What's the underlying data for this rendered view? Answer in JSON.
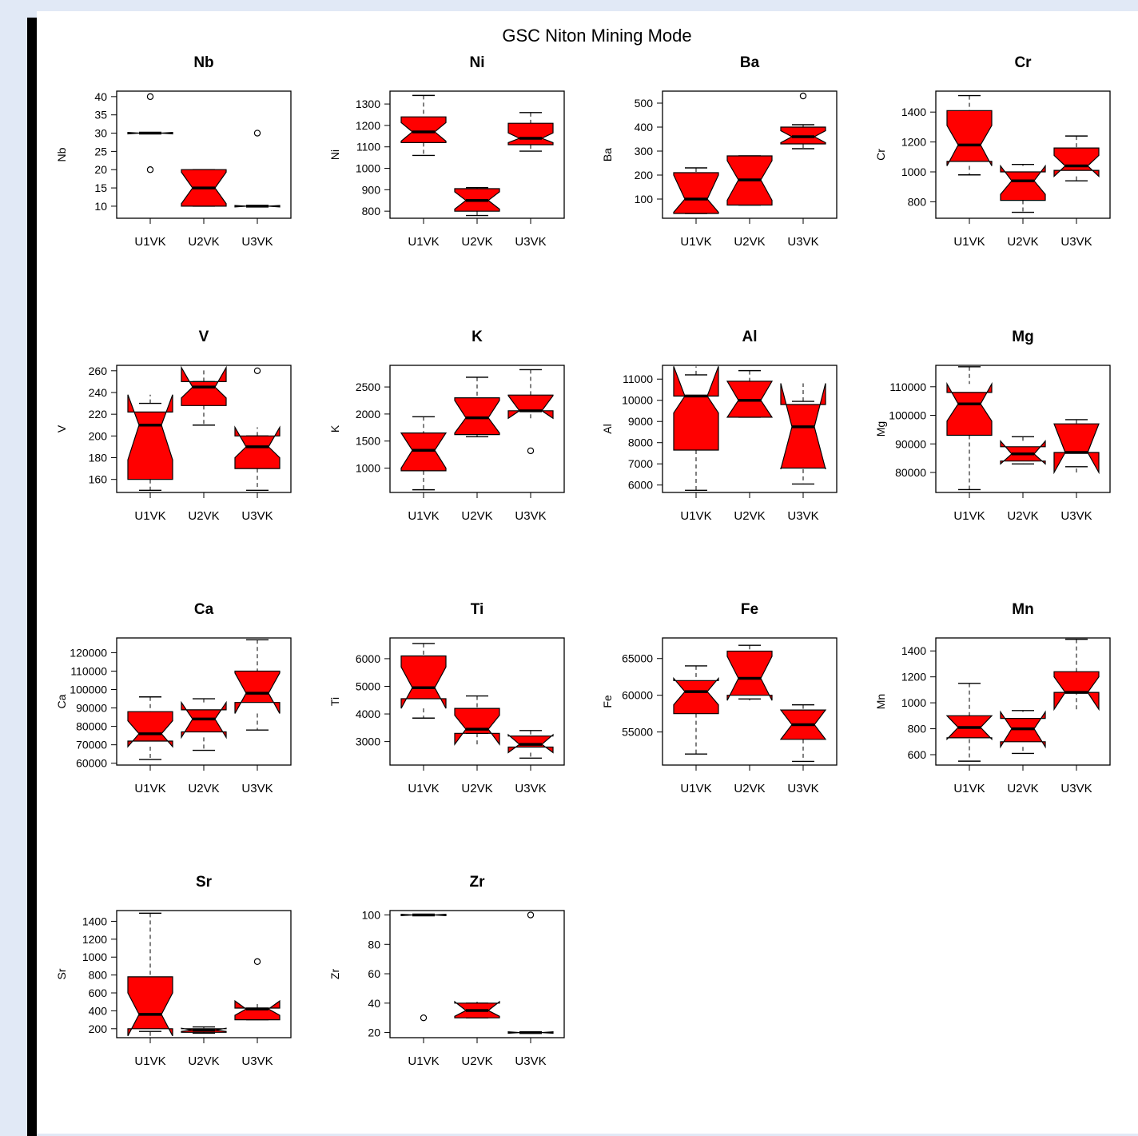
{
  "page": {
    "suptitle": "GSC Niton Mining Mode",
    "colors": {
      "page_bg": "#e1e9f6",
      "box_fill": "#ff0000",
      "frame": "#000000"
    }
  },
  "chart_data": [
    {
      "type": "box",
      "title": "Nb",
      "ylabel": "Nb",
      "categories": [
        "U1VK",
        "U2VK",
        "U3VK"
      ],
      "yticks": [
        10,
        15,
        20,
        25,
        30,
        35,
        40
      ],
      "ylim": [
        6.7,
        41.5
      ],
      "boxes": [
        {
          "q1": 30,
          "median": 30,
          "q3": 30,
          "notch_lo": 29.8,
          "notch_hi": 30.2,
          "whisker_lo": 30,
          "whisker_hi": 30,
          "outliers": [
            40,
            20
          ]
        },
        {
          "q1": 10,
          "median": 15,
          "q3": 20,
          "notch_lo": 10.7,
          "notch_hi": 19.3,
          "whisker_lo": 10,
          "whisker_hi": 20,
          "outliers": []
        },
        {
          "q1": 10,
          "median": 10,
          "q3": 10,
          "notch_lo": 9.8,
          "notch_hi": 10.2,
          "whisker_lo": 10,
          "whisker_hi": 10,
          "outliers": [
            30
          ]
        }
      ]
    },
    {
      "type": "box",
      "title": "Ni",
      "ylabel": "Ni",
      "categories": [
        "U1VK",
        "U2VK",
        "U3VK"
      ],
      "yticks": [
        800,
        900,
        1000,
        1100,
        1200,
        1300
      ],
      "ylim": [
        767,
        1360
      ],
      "boxes": [
        {
          "q1": 1120,
          "median": 1170,
          "q3": 1240,
          "notch_lo": 1127,
          "notch_hi": 1213,
          "whisker_lo": 1060,
          "whisker_hi": 1340,
          "outliers": []
        },
        {
          "q1": 800,
          "median": 850,
          "q3": 905,
          "notch_lo": 810,
          "notch_hi": 890,
          "whisker_lo": 780,
          "whisker_hi": 910,
          "outliers": []
        },
        {
          "q1": 1110,
          "median": 1140,
          "q3": 1210,
          "notch_lo": 1120,
          "notch_hi": 1165,
          "whisker_lo": 1080,
          "whisker_hi": 1260,
          "outliers": []
        }
      ]
    },
    {
      "type": "box",
      "title": "Ba",
      "ylabel": "Ba",
      "categories": [
        "U1VK",
        "U2VK",
        "U3VK"
      ],
      "yticks": [
        100,
        200,
        300,
        400,
        500
      ],
      "ylim": [
        20,
        550
      ],
      "boxes": [
        {
          "q1": 40,
          "median": 100,
          "q3": 210,
          "notch_lo": 45,
          "notch_hi": 200,
          "whisker_lo": 40,
          "whisker_hi": 230,
          "outliers": []
        },
        {
          "q1": 75,
          "median": 180,
          "q3": 280,
          "notch_lo": 95,
          "notch_hi": 260,
          "whisker_lo": 75,
          "whisker_hi": 280,
          "outliers": []
        },
        {
          "q1": 330,
          "median": 360,
          "q3": 400,
          "notch_lo": 335,
          "notch_hi": 385,
          "whisker_lo": 310,
          "whisker_hi": 410,
          "outliers": [
            530
          ]
        }
      ]
    },
    {
      "type": "box",
      "title": "Cr",
      "ylabel": "Cr",
      "categories": [
        "U1VK",
        "U2VK",
        "U3VK"
      ],
      "yticks": [
        800,
        1000,
        1200,
        1400
      ],
      "ylim": [
        690,
        1540
      ],
      "boxes": [
        {
          "q1": 1070,
          "median": 1180,
          "q3": 1410,
          "notch_lo": 1040,
          "notch_hi": 1310,
          "whisker_lo": 980,
          "whisker_hi": 1510,
          "outliers": []
        },
        {
          "q1": 810,
          "median": 940,
          "q3": 1000,
          "notch_lo": 850,
          "notch_hi": 1040,
          "whisker_lo": 730,
          "whisker_hi": 1050,
          "outliers": []
        },
        {
          "q1": 1010,
          "median": 1040,
          "q3": 1160,
          "notch_lo": 970,
          "notch_hi": 1110,
          "whisker_lo": 940,
          "whisker_hi": 1240,
          "outliers": []
        }
      ]
    },
    {
      "type": "box",
      "title": "V",
      "ylabel": "V",
      "categories": [
        "U1VK",
        "U2VK",
        "U3VK"
      ],
      "yticks": [
        160,
        180,
        200,
        220,
        240,
        260
      ],
      "ylim": [
        148,
        265
      ],
      "boxes": [
        {
          "q1": 160,
          "median": 210,
          "q3": 222,
          "notch_lo": 178,
          "notch_hi": 238,
          "whisker_lo": 150,
          "whisker_hi": 230,
          "outliers": []
        },
        {
          "q1": 228,
          "median": 245,
          "q3": 250,
          "notch_lo": 235,
          "notch_hi": 263,
          "whisker_lo": 210,
          "whisker_hi": 250,
          "outliers": []
        },
        {
          "q1": 170,
          "median": 190,
          "q3": 200,
          "notch_lo": 180,
          "notch_hi": 208,
          "whisker_lo": 150,
          "whisker_hi": 200,
          "outliers": [
            260
          ]
        }
      ]
    },
    {
      "type": "box",
      "title": "K",
      "ylabel": "K",
      "categories": [
        "U1VK",
        "U2VK",
        "U3VK"
      ],
      "yticks": [
        1000,
        1500,
        2000,
        2500
      ],
      "ylim": [
        550,
        2900
      ],
      "boxes": [
        {
          "q1": 950,
          "median": 1330,
          "q3": 1650,
          "notch_lo": 1000,
          "notch_hi": 1650,
          "whisker_lo": 600,
          "whisker_hi": 1950,
          "outliers": []
        },
        {
          "q1": 1620,
          "median": 1930,
          "q3": 2300,
          "notch_lo": 1650,
          "notch_hi": 2250,
          "whisker_lo": 1580,
          "whisker_hi": 2680,
          "outliers": []
        },
        {
          "q1": 2060,
          "median": 2060,
          "q3": 2350,
          "notch_lo": 1920,
          "notch_hi": 2340,
          "whisker_lo": 2060,
          "whisker_hi": 2820,
          "outliers": [
            1320
          ]
        }
      ]
    },
    {
      "type": "box",
      "title": "Al",
      "ylabel": "Al",
      "categories": [
        "U1VK",
        "U2VK",
        "U3VK"
      ],
      "yticks": [
        6000,
        7000,
        8000,
        9000,
        10000,
        11000
      ],
      "ylim": [
        5650,
        11650
      ],
      "boxes": [
        {
          "q1": 7650,
          "median": 10200,
          "q3": 10200,
          "notch_lo": 9400,
          "notch_hi": 11600,
          "whisker_lo": 5750,
          "whisker_hi": 11200,
          "outliers": []
        },
        {
          "q1": 9200,
          "median": 10000,
          "q3": 10900,
          "notch_lo": 9200,
          "notch_hi": 10900,
          "whisker_lo": 9200,
          "whisker_hi": 11400,
          "outliers": []
        },
        {
          "q1": 6800,
          "median": 8750,
          "q3": 9800,
          "notch_lo": 6750,
          "notch_hi": 10800,
          "whisker_lo": 6050,
          "whisker_hi": 9950,
          "outliers": []
        }
      ]
    },
    {
      "type": "box",
      "title": "Mg",
      "ylabel": "Mg",
      "categories": [
        "U1VK",
        "U2VK",
        "U3VK"
      ],
      "yticks": [
        80000,
        90000,
        100000,
        110000
      ],
      "ylim": [
        73000,
        117500
      ],
      "boxes": [
        {
          "q1": 93000,
          "median": 104000,
          "q3": 108000,
          "notch_lo": 98000,
          "notch_hi": 111000,
          "whisker_lo": 74000,
          "whisker_hi": 117000,
          "outliers": []
        },
        {
          "q1": 84000,
          "median": 86500,
          "q3": 89000,
          "notch_lo": 83000,
          "notch_hi": 91000,
          "whisker_lo": 83000,
          "whisker_hi": 92500,
          "outliers": []
        },
        {
          "q1": 87000,
          "median": 87000,
          "q3": 97000,
          "notch_lo": 80000,
          "notch_hi": 97000,
          "whisker_lo": 82000,
          "whisker_hi": 98500,
          "outliers": []
        }
      ]
    },
    {
      "type": "box",
      "title": "Ca",
      "ylabel": "Ca",
      "categories": [
        "U1VK",
        "U2VK",
        "U3VK"
      ],
      "yticks": [
        60000,
        70000,
        80000,
        90000,
        100000,
        110000,
        120000
      ],
      "ylim": [
        59000,
        128000
      ],
      "boxes": [
        {
          "q1": 72000,
          "median": 76000,
          "q3": 88000,
          "notch_lo": 69000,
          "notch_hi": 83000,
          "whisker_lo": 62000,
          "whisker_hi": 96000,
          "outliers": []
        },
        {
          "q1": 77000,
          "median": 84000,
          "q3": 89000,
          "notch_lo": 74000,
          "notch_hi": 93000,
          "whisker_lo": 67000,
          "whisker_hi": 95000,
          "outliers": []
        },
        {
          "q1": 93000,
          "median": 98000,
          "q3": 110000,
          "notch_lo": 87000,
          "notch_hi": 109000,
          "whisker_lo": 78000,
          "whisker_hi": 127000,
          "outliers": []
        }
      ]
    },
    {
      "type": "box",
      "title": "Ti",
      "ylabel": "Ti",
      "categories": [
        "U1VK",
        "U2VK",
        "U3VK"
      ],
      "yticks": [
        3000,
        4000,
        5000,
        6000
      ],
      "ylim": [
        2150,
        6750
      ],
      "boxes": [
        {
          "q1": 4550,
          "median": 4950,
          "q3": 6100,
          "notch_lo": 4200,
          "notch_hi": 5700,
          "whisker_lo": 3850,
          "whisker_hi": 6550,
          "outliers": []
        },
        {
          "q1": 3300,
          "median": 3450,
          "q3": 4200,
          "notch_lo": 2900,
          "notch_hi": 3950,
          "whisker_lo": 3300,
          "whisker_hi": 4650,
          "outliers": []
        },
        {
          "q1": 2800,
          "median": 2900,
          "q3": 3200,
          "notch_lo": 2600,
          "notch_hi": 3250,
          "whisker_lo": 2400,
          "whisker_hi": 3400,
          "outliers": []
        }
      ]
    },
    {
      "type": "box",
      "title": "Fe",
      "ylabel": "Fe",
      "categories": [
        "U1VK",
        "U2VK",
        "U3VK"
      ],
      "yticks": [
        55000,
        60000,
        65000
      ],
      "ylim": [
        50500,
        67800
      ],
      "boxes": [
        {
          "q1": 57500,
          "median": 60500,
          "q3": 62000,
          "notch_lo": 58700,
          "notch_hi": 62300,
          "whisker_lo": 52000,
          "whisker_hi": 64000,
          "outliers": []
        },
        {
          "q1": 60000,
          "median": 62300,
          "q3": 66000,
          "notch_lo": 59300,
          "notch_hi": 65300,
          "whisker_lo": 59500,
          "whisker_hi": 66800,
          "outliers": []
        },
        {
          "q1": 54000,
          "median": 56000,
          "q3": 58000,
          "notch_lo": 54000,
          "notch_hi": 58000,
          "whisker_lo": 51000,
          "whisker_hi": 58700,
          "outliers": []
        }
      ]
    },
    {
      "type": "box",
      "title": "Mn",
      "ylabel": "Mn",
      "categories": [
        "U1VK",
        "U2VK",
        "U3VK"
      ],
      "yticks": [
        600,
        800,
        1000,
        1200,
        1400
      ],
      "ylim": [
        520,
        1500
      ],
      "boxes": [
        {
          "q1": 730,
          "median": 810,
          "q3": 900,
          "notch_lo": 720,
          "notch_hi": 900,
          "whisker_lo": 550,
          "whisker_hi": 1150,
          "outliers": []
        },
        {
          "q1": 700,
          "median": 800,
          "q3": 880,
          "notch_lo": 660,
          "notch_hi": 930,
          "whisker_lo": 610,
          "whisker_hi": 940,
          "outliers": []
        },
        {
          "q1": 1080,
          "median": 1080,
          "q3": 1240,
          "notch_lo": 950,
          "notch_hi": 1200,
          "whisker_lo": 1080,
          "whisker_hi": 1490,
          "outliers": []
        }
      ]
    },
    {
      "type": "box",
      "title": "Sr",
      "ylabel": "Sr",
      "categories": [
        "U1VK",
        "U2VK",
        "U3VK"
      ],
      "yticks": [
        200,
        400,
        600,
        800,
        1000,
        1200,
        1400
      ],
      "ylim": [
        100,
        1520
      ],
      "boxes": [
        {
          "q1": 200,
          "median": 360,
          "q3": 780,
          "notch_lo": 120,
          "notch_hi": 600,
          "whisker_lo": 170,
          "whisker_hi": 1490,
          "outliers": []
        },
        {
          "q1": 160,
          "median": 185,
          "q3": 200,
          "notch_lo": 170,
          "notch_hi": 205,
          "whisker_lo": 150,
          "whisker_hi": 220,
          "outliers": []
        },
        {
          "q1": 300,
          "median": 420,
          "q3": 430,
          "notch_lo": 350,
          "notch_hi": 510,
          "whisker_lo": 300,
          "whisker_hi": 430,
          "outliers": [
            950
          ]
        }
      ]
    },
    {
      "type": "box",
      "title": "Zr",
      "ylabel": "Zr",
      "categories": [
        "U1VK",
        "U2VK",
        "U3VK"
      ],
      "yticks": [
        20,
        40,
        60,
        80,
        100
      ],
      "ylim": [
        16.5,
        103
      ],
      "boxes": [
        {
          "q1": 100,
          "median": 100,
          "q3": 100,
          "notch_lo": 99.5,
          "notch_hi": 100.5,
          "whisker_lo": 100,
          "whisker_hi": 100,
          "outliers": [
            30
          ]
        },
        {
          "q1": 30,
          "median": 35,
          "q3": 40,
          "notch_lo": 31,
          "notch_hi": 41,
          "whisker_lo": 30,
          "whisker_hi": 40,
          "outliers": []
        },
        {
          "q1": 20,
          "median": 20,
          "q3": 20,
          "notch_lo": 19.5,
          "notch_hi": 20.5,
          "whisker_lo": 20,
          "whisker_hi": 20,
          "outliers": [
            100
          ]
        }
      ]
    }
  ]
}
